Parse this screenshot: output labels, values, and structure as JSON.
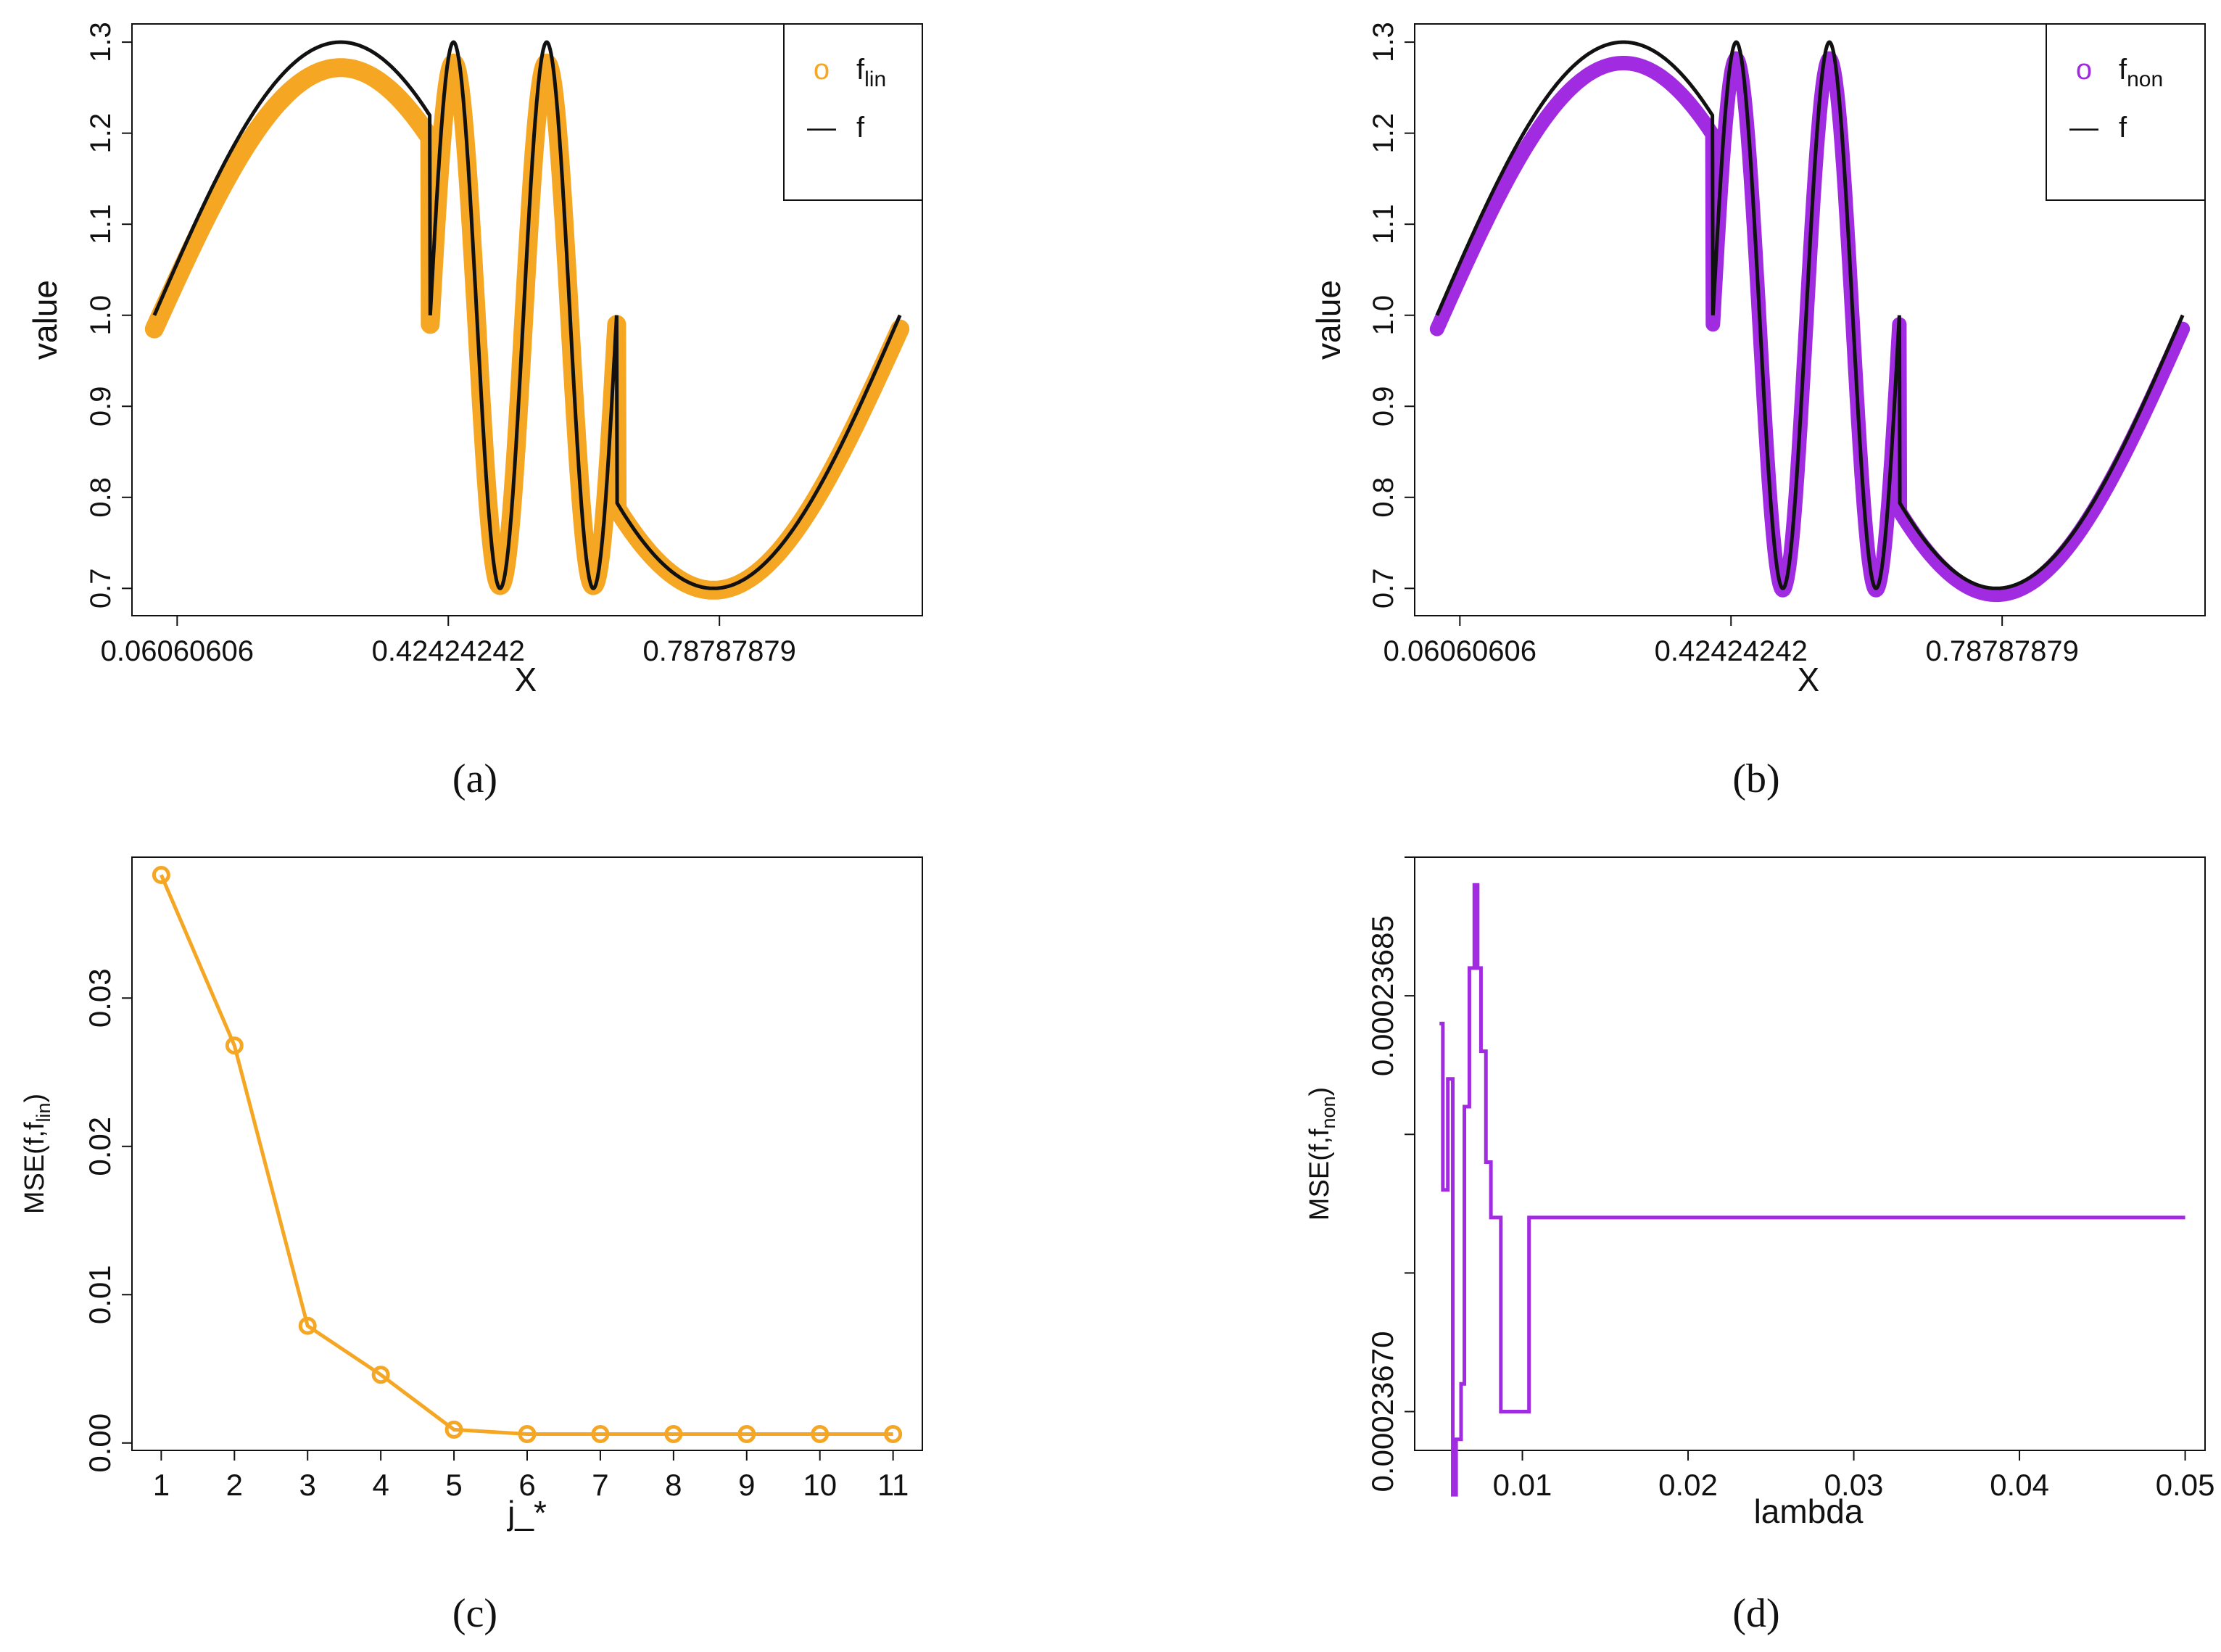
{
  "colors": {
    "orange": "#F5A623",
    "purple": "#A12BE0",
    "black": "#111111"
  },
  "chart_data": [
    {
      "id": "a",
      "type": "scatter",
      "caption": "(a)",
      "xlabel": "X",
      "ylabel": "value",
      "xlim": [
        0,
        1.06
      ],
      "ylim": [
        0.67,
        1.32
      ],
      "xtick_positions": [
        0.06060606,
        0.42424242,
        0.78787879
      ],
      "xtick_labels": [
        "0.06060606",
        "0.42424242",
        "0.78787879"
      ],
      "yticks": [
        0.7,
        0.8,
        0.9,
        1.0,
        1.1,
        1.2,
        1.3
      ],
      "ytick_labels": [
        "0.7",
        "0.8",
        "0.9",
        "1.0",
        "1.1",
        "1.2",
        "1.3"
      ],
      "x_range": [
        0.03,
        1.03
      ],
      "legend": {
        "position": "top-right",
        "entries": [
          {
            "base": "f",
            "sub": "lin",
            "symbol": "o",
            "color": "#F5A623"
          },
          {
            "base": "f",
            "sub": "",
            "symbol": "—",
            "color": "#111111"
          }
        ]
      },
      "series": [
        {
          "name": "f",
          "kind": "line",
          "color": "#111111",
          "formula": "1 + 0.3*sin(2*pi*(x - 0.03)) for x in [0.03,0.40] U [0.65,1.03]; 1 + 0.3*sin(2*pi*(x - 0.40)/0.125) for x in [0.40,0.65]"
        },
        {
          "name": "f_lin",
          "kind": "points",
          "color": "#F5A623",
          "formula": "f(x) smoothed; peaks ~1.265, troughs ~0.695"
        }
      ]
    },
    {
      "id": "b",
      "type": "scatter",
      "caption": "(b)",
      "xlabel": "X",
      "ylabel": "value",
      "xlim": [
        0,
        1.06
      ],
      "ylim": [
        0.67,
        1.32
      ],
      "xtick_positions": [
        0.06060606,
        0.42424242,
        0.78787879
      ],
      "xtick_labels": [
        "0.06060606",
        "0.42424242",
        "0.78787879"
      ],
      "yticks": [
        0.7,
        0.8,
        0.9,
        1.0,
        1.1,
        1.2,
        1.3
      ],
      "ytick_labels": [
        "0.7",
        "0.8",
        "0.9",
        "1.0",
        "1.1",
        "1.2",
        "1.3"
      ],
      "x_range": [
        0.03,
        1.03
      ],
      "legend": {
        "position": "top-right",
        "entries": [
          {
            "base": "f",
            "sub": "non",
            "symbol": "o",
            "color": "#A12BE0"
          },
          {
            "base": "f",
            "sub": "",
            "symbol": "—",
            "color": "#111111"
          }
        ]
      },
      "series": [
        {
          "name": "f",
          "kind": "line",
          "color": "#111111",
          "formula": "same as panel (a)"
        },
        {
          "name": "f_non",
          "kind": "points",
          "color": "#A12BE0",
          "formula": "close to f; peaks ~1.28, troughs ~0.70"
        }
      ]
    },
    {
      "id": "c",
      "type": "line",
      "caption": "(c)",
      "xlabel": "j_*",
      "ylabel_main": "MSE(f,f",
      "ylabel_sub": "lin",
      "ylabel_end": ")",
      "xlim": [
        0.6,
        11.4
      ],
      "ylim": [
        -0.0005,
        0.0395
      ],
      "xticks": [
        1,
        2,
        3,
        4,
        5,
        6,
        7,
        8,
        9,
        10,
        11
      ],
      "xtick_labels": [
        "1",
        "2",
        "3",
        "4",
        "5",
        "6",
        "7",
        "8",
        "9",
        "10",
        "11"
      ],
      "yticks": [
        0.0,
        0.01,
        0.02,
        0.03
      ],
      "ytick_labels": [
        "0.00",
        "0.01",
        "0.02",
        "0.03"
      ],
      "color": "#F5A623",
      "x": [
        1,
        2,
        3,
        4,
        5,
        6,
        7,
        8,
        9,
        10,
        11
      ],
      "values": [
        0.0383,
        0.0268,
        0.0079,
        0.0046,
        0.0009,
        0.0006,
        0.0006,
        0.0006,
        0.0006,
        0.0006,
        0.0006
      ]
    },
    {
      "id": "d",
      "type": "line",
      "step": true,
      "caption": "(d)",
      "xlabel": "lambda",
      "ylabel_main": "MSE(f,f",
      "ylabel_sub": "non",
      "ylabel_end": ")",
      "xlim": [
        0.0035,
        0.0512
      ],
      "ylim": [
        0.000236686,
        0.0002369
      ],
      "xticks": [
        0.01,
        0.02,
        0.03,
        0.04,
        0.05
      ],
      "xtick_labels": [
        "0.01",
        "0.02",
        "0.03",
        "0.04",
        "0.05"
      ],
      "yticks": [
        0.0002367,
        0.00023685
      ],
      "ytick_labels": [
        "0.00023670",
        "0.00023685"
      ],
      "color": "#A12BE0",
      "x": [
        0.005,
        0.0052,
        0.0055,
        0.0058,
        0.006,
        0.0063,
        0.0065,
        0.0068,
        0.0071,
        0.0073,
        0.0075,
        0.0078,
        0.0081,
        0.0087,
        0.0095,
        0.0104,
        0.0109,
        0.05
      ],
      "values": [
        0.00023684,
        0.00023678,
        0.00023682,
        0.00023667,
        0.00023669,
        0.00023671,
        0.00023681,
        0.00023686,
        0.00023689,
        0.00023686,
        0.00023683,
        0.00023679,
        0.00023677,
        0.0002367,
        0.0002367,
        0.00023677,
        0.00023677,
        0.00023677
      ]
    }
  ]
}
